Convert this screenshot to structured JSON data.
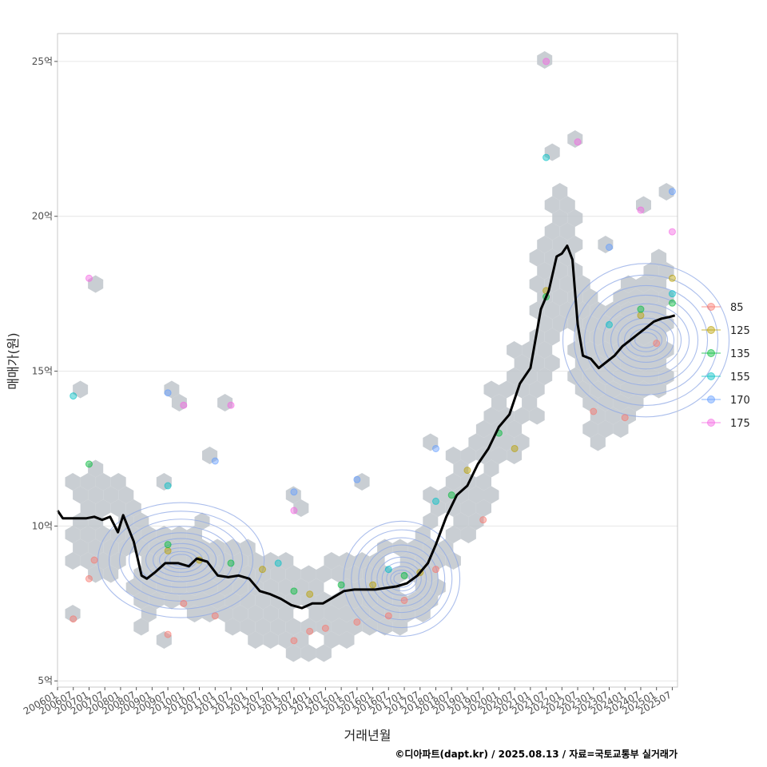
{
  "chart_data": {
    "type": "scatter",
    "title": "",
    "xlabel": "거래년월",
    "ylabel": "매매가(원)",
    "caption": "©디아파트(dapt.kr) / 2025.08.13 / 자료=국토교통부 실거래가",
    "x_range": [
      "2006-01",
      "2025-09"
    ],
    "ylim": [
      4.8,
      25.9
    ],
    "y_ticks": [
      {
        "value": 5,
        "label": "5억"
      },
      {
        "value": 10,
        "label": "10억"
      },
      {
        "value": 15,
        "label": "15억"
      },
      {
        "value": 20,
        "label": "20억"
      },
      {
        "value": 25,
        "label": "25억"
      }
    ],
    "x_ticks": [
      "200601",
      "200607",
      "200701",
      "200707",
      "200801",
      "200807",
      "200901",
      "200907",
      "201001",
      "201007",
      "201101",
      "201107",
      "201201",
      "201207",
      "201301",
      "201307",
      "201401",
      "201407",
      "201501",
      "201507",
      "201601",
      "201607",
      "201701",
      "201707",
      "201801",
      "201807",
      "201901",
      "201907",
      "202001",
      "202007",
      "202101",
      "202107",
      "202201",
      "202207",
      "202301",
      "202307",
      "202401",
      "202407",
      "202501",
      "202507"
    ],
    "legend": {
      "position": "right",
      "items": [
        {
          "label": "85",
          "color": "#F8766D"
        },
        {
          "label": "125",
          "color": "#B79F00"
        },
        {
          "label": "135",
          "color": "#00BA38"
        },
        {
          "label": "155",
          "color": "#00BFC4"
        },
        {
          "label": "170",
          "color": "#619CFF"
        },
        {
          "label": "175",
          "color": "#F564E3"
        }
      ]
    },
    "median_line": {
      "name": "median price",
      "color": "#000000",
      "points": [
        [
          "2006-01",
          10.5
        ],
        [
          "2006-03",
          10.25
        ],
        [
          "2006-07",
          10.25
        ],
        [
          "2006-12",
          10.25
        ],
        [
          "2007-03",
          10.3
        ],
        [
          "2007-06",
          10.2
        ],
        [
          "2007-09",
          10.3
        ],
        [
          "2007-12",
          9.8
        ],
        [
          "2008-02",
          10.35
        ],
        [
          "2008-06",
          9.5
        ],
        [
          "2008-09",
          8.4
        ],
        [
          "2008-11",
          8.3
        ],
        [
          "2009-02",
          8.5
        ],
        [
          "2009-06",
          8.8
        ],
        [
          "2009-11",
          8.8
        ],
        [
          "2010-03",
          8.7
        ],
        [
          "2010-06",
          8.95
        ],
        [
          "2010-10",
          8.85
        ],
        [
          "2011-02",
          8.4
        ],
        [
          "2011-06",
          8.35
        ],
        [
          "2011-10",
          8.4
        ],
        [
          "2012-02",
          8.3
        ],
        [
          "2012-06",
          7.9
        ],
        [
          "2012-10",
          7.8
        ],
        [
          "2013-02",
          7.65
        ],
        [
          "2013-06",
          7.45
        ],
        [
          "2013-10",
          7.35
        ],
        [
          "2014-02",
          7.5
        ],
        [
          "2014-06",
          7.5
        ],
        [
          "2014-10",
          7.7
        ],
        [
          "2015-02",
          7.9
        ],
        [
          "2015-06",
          7.95
        ],
        [
          "2015-10",
          7.95
        ],
        [
          "2016-02",
          7.95
        ],
        [
          "2016-06",
          8.0
        ],
        [
          "2016-10",
          8.05
        ],
        [
          "2017-02",
          8.15
        ],
        [
          "2017-06",
          8.4
        ],
        [
          "2017-10",
          8.8
        ],
        [
          "2018-01",
          9.4
        ],
        [
          "2018-05",
          10.3
        ],
        [
          "2018-09",
          11.0
        ],
        [
          "2019-01",
          11.3
        ],
        [
          "2019-05",
          12.0
        ],
        [
          "2019-09",
          12.5
        ],
        [
          "2020-01",
          13.2
        ],
        [
          "2020-05",
          13.6
        ],
        [
          "2020-09",
          14.6
        ],
        [
          "2021-01",
          15.1
        ],
        [
          "2021-05",
          17.0
        ],
        [
          "2021-08",
          17.6
        ],
        [
          "2021-11",
          18.7
        ],
        [
          "2022-01",
          18.8
        ],
        [
          "2022-03",
          19.05
        ],
        [
          "2022-05",
          18.6
        ],
        [
          "2022-07",
          16.5
        ],
        [
          "2022-09",
          15.5
        ],
        [
          "2022-12",
          15.4
        ],
        [
          "2023-03",
          15.1
        ],
        [
          "2023-06",
          15.3
        ],
        [
          "2023-09",
          15.5
        ],
        [
          "2023-12",
          15.8
        ],
        [
          "2024-03",
          16.0
        ],
        [
          "2024-06",
          16.2
        ],
        [
          "2024-09",
          16.4
        ],
        [
          "2024-12",
          16.6
        ],
        [
          "2025-03",
          16.7
        ],
        [
          "2025-06",
          16.75
        ],
        [
          "2025-08",
          16.8
        ]
      ]
    },
    "density_contours": {
      "color": "#8FA8E6",
      "levels": 10,
      "centers": [
        [
          "2009-12",
          8.9
        ],
        [
          "2016-12",
          8.3
        ],
        [
          "2024-09",
          16.0
        ]
      ]
    },
    "hexbin": {
      "color": "#BFC5CB",
      "note": "hexagonal binned transaction counts"
    },
    "series": [
      {
        "name": "85",
        "points": [
          [
            "2006-07",
            7.0
          ],
          [
            "2007-01",
            8.3
          ],
          [
            "2007-03",
            8.9
          ],
          [
            "2009-07",
            6.5
          ],
          [
            "2010-01",
            7.5
          ],
          [
            "2011-01",
            7.1
          ],
          [
            "2013-07",
            6.3
          ],
          [
            "2014-01",
            6.6
          ],
          [
            "2014-07",
            6.7
          ],
          [
            "2015-07",
            6.9
          ],
          [
            "2016-07",
            7.1
          ],
          [
            "2017-01",
            7.6
          ],
          [
            "2018-01",
            8.6
          ],
          [
            "2019-07",
            10.2
          ],
          [
            "2023-01",
            13.7
          ],
          [
            "2024-01",
            13.5
          ],
          [
            "2025-01",
            15.9
          ]
        ]
      },
      {
        "name": "125",
        "points": [
          [
            "2009-07",
            9.2
          ],
          [
            "2010-07",
            8.9
          ],
          [
            "2012-07",
            8.6
          ],
          [
            "2014-01",
            7.8
          ],
          [
            "2016-01",
            8.1
          ],
          [
            "2017-07",
            8.5
          ],
          [
            "2019-01",
            11.8
          ],
          [
            "2020-07",
            12.5
          ],
          [
            "2021-07",
            17.6
          ],
          [
            "2024-07",
            16.8
          ],
          [
            "2025-07",
            18.0
          ]
        ]
      },
      {
        "name": "135",
        "points": [
          [
            "2007-01",
            12.0
          ],
          [
            "2009-07",
            9.4
          ],
          [
            "2011-07",
            8.8
          ],
          [
            "2013-07",
            7.9
          ],
          [
            "2015-01",
            8.1
          ],
          [
            "2017-01",
            8.4
          ],
          [
            "2018-07",
            11.0
          ],
          [
            "2020-01",
            13.0
          ],
          [
            "2021-07",
            17.4
          ],
          [
            "2024-07",
            17.0
          ],
          [
            "2025-07",
            17.2
          ]
        ]
      },
      {
        "name": "155",
        "points": [
          [
            "2006-07",
            14.2
          ],
          [
            "2009-07",
            11.3
          ],
          [
            "2013-01",
            8.8
          ],
          [
            "2016-07",
            8.6
          ],
          [
            "2018-01",
            10.8
          ],
          [
            "2021-07",
            21.9
          ],
          [
            "2023-07",
            16.5
          ],
          [
            "2025-07",
            17.5
          ]
        ]
      },
      {
        "name": "170",
        "points": [
          [
            "2009-07",
            14.3
          ],
          [
            "2011-01",
            12.1
          ],
          [
            "2013-07",
            11.1
          ],
          [
            "2015-07",
            11.5
          ],
          [
            "2018-01",
            12.5
          ],
          [
            "2023-07",
            19.0
          ],
          [
            "2025-07",
            20.8
          ]
        ]
      },
      {
        "name": "175",
        "points": [
          [
            "2007-01",
            18.0
          ],
          [
            "2010-01",
            13.9
          ],
          [
            "2011-07",
            13.9
          ],
          [
            "2013-07",
            10.5
          ],
          [
            "2021-07",
            25.0
          ],
          [
            "2022-07",
            22.4
          ],
          [
            "2024-07",
            20.2
          ],
          [
            "2025-07",
            19.5
          ]
        ]
      }
    ]
  }
}
